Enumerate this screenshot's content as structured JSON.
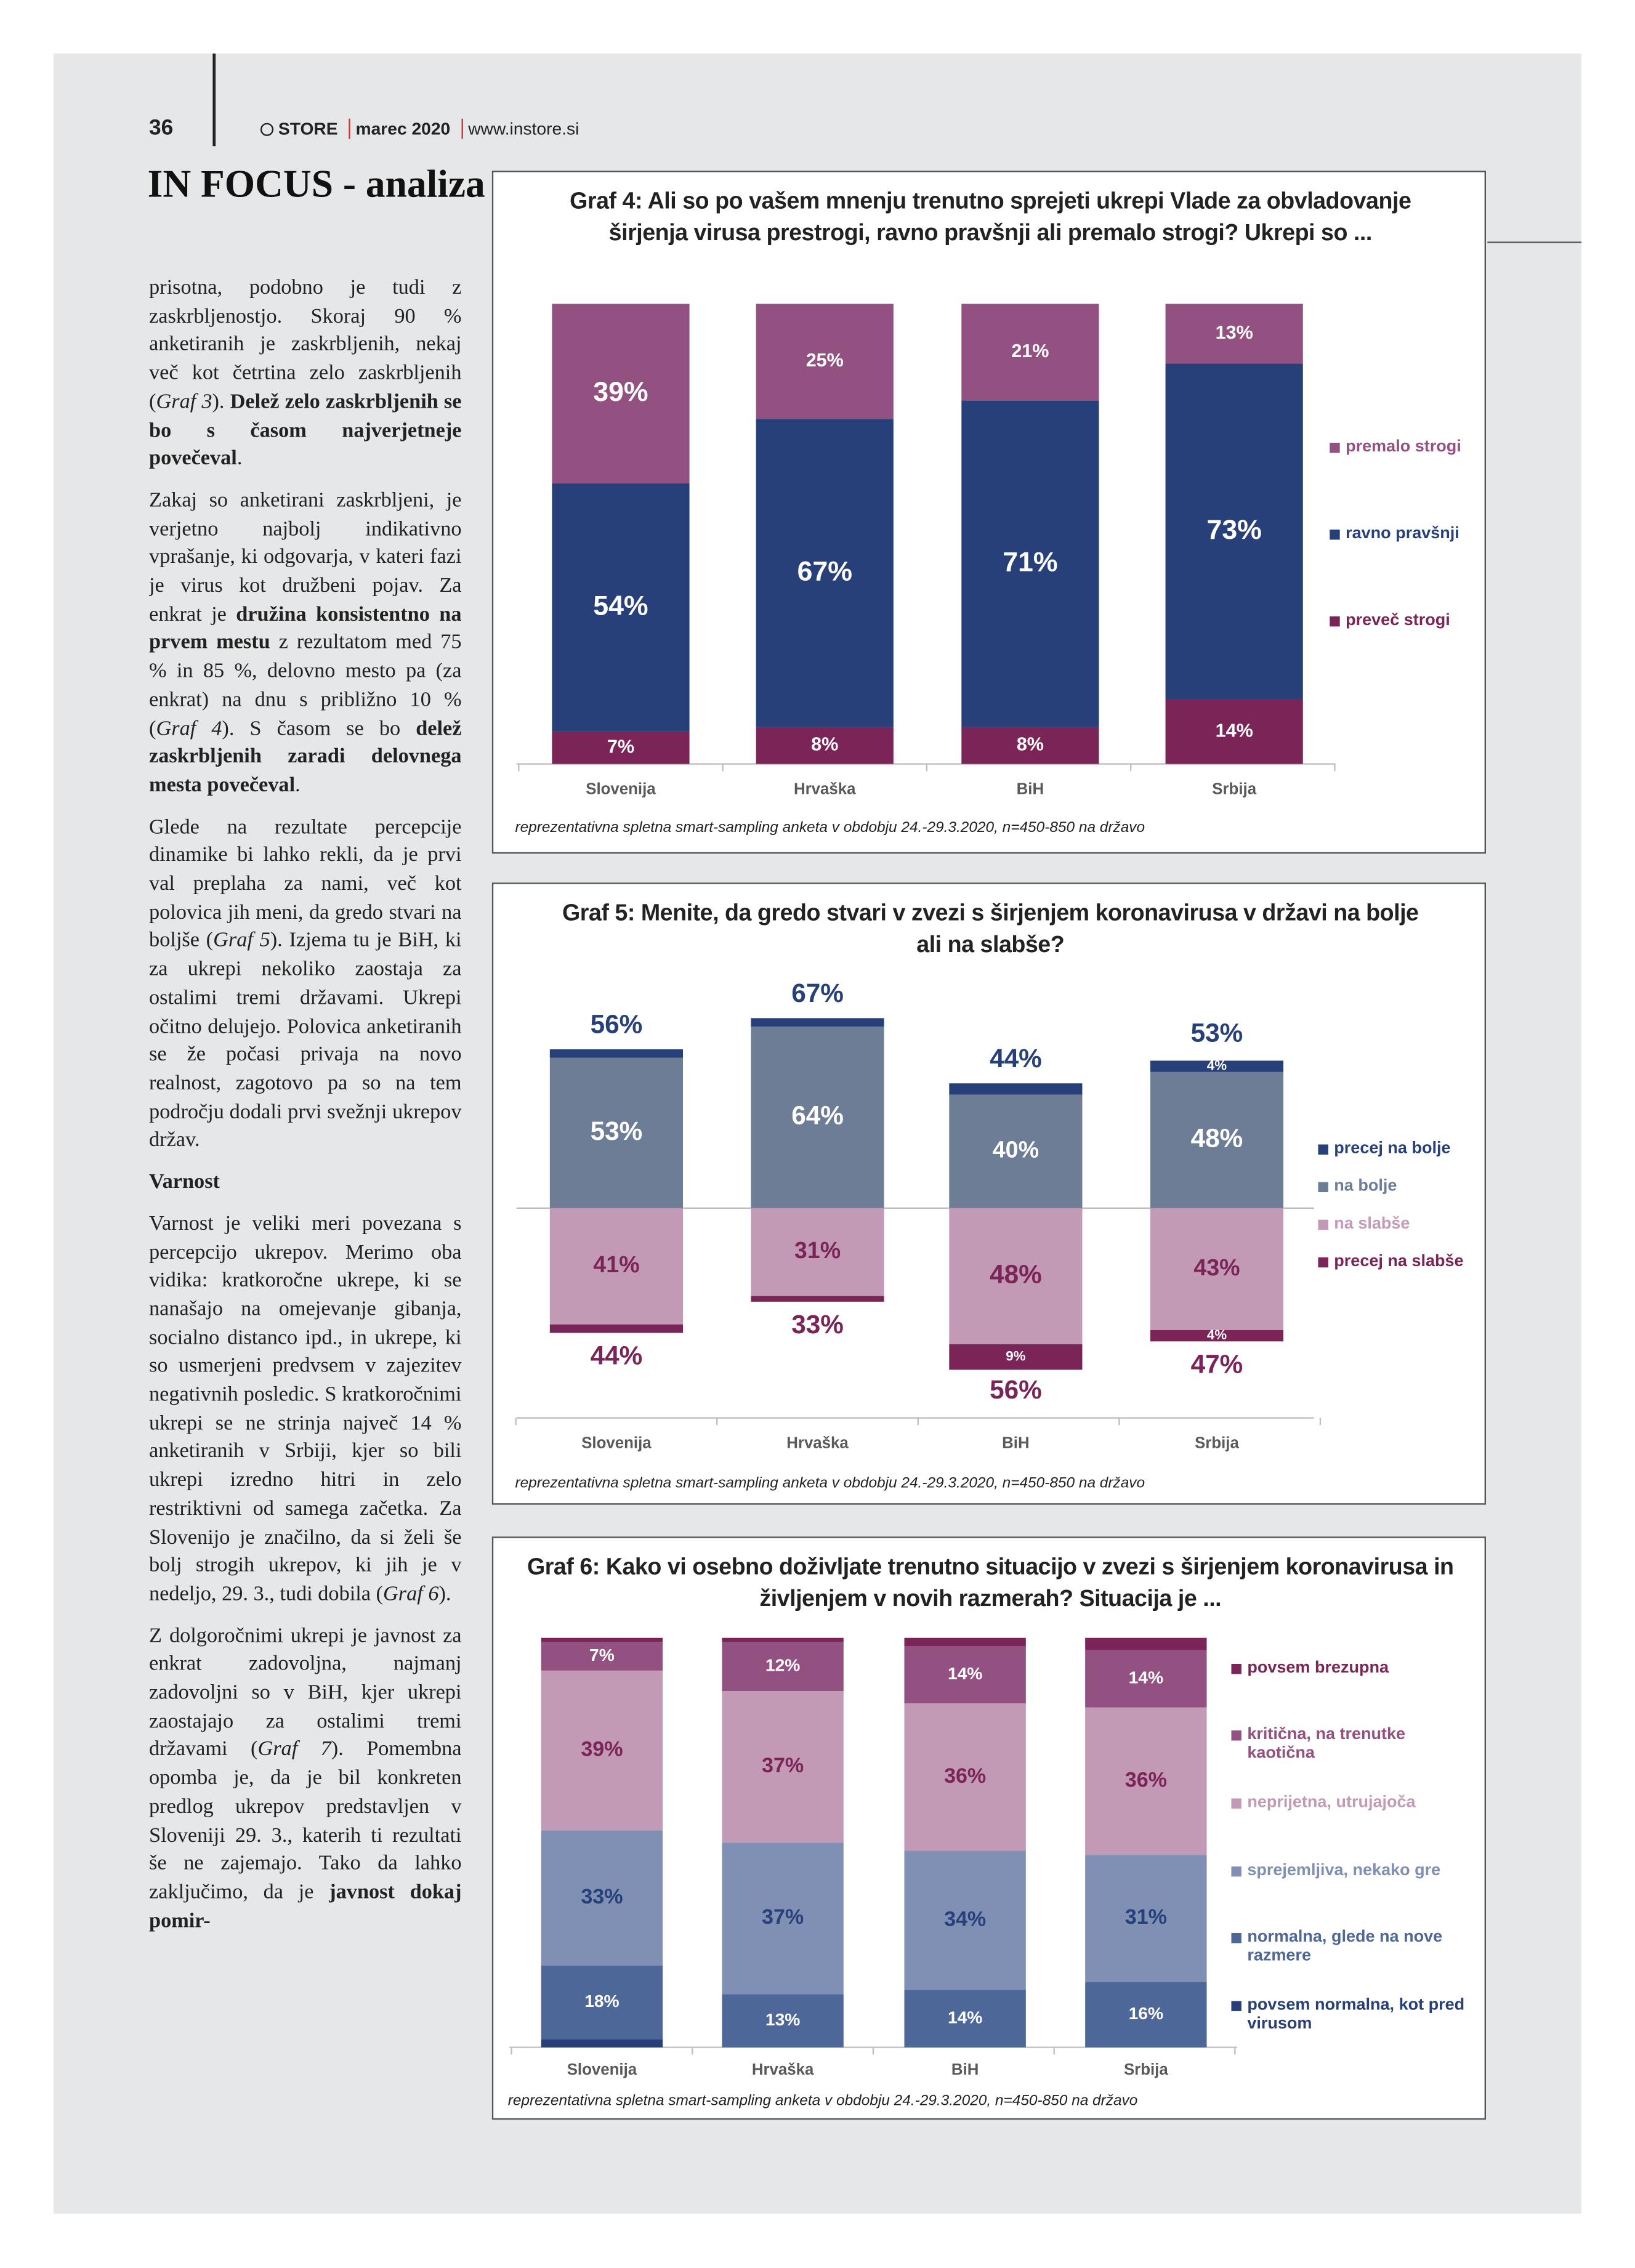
{
  "header": {
    "page_number": "36",
    "magazine": "STORE",
    "issue": "marec 2020",
    "website": "www.instore.si",
    "section": "IN FOCUS - analiza"
  },
  "article": {
    "paragraphs": [
      {
        "kind": "text",
        "runs": [
          {
            "text": "prisotna, podobno je tudi z zaskrbljenostjo. Skoraj 90 % anketiranih je zaskrbljenih, nekaj več kot četrtina zelo zaskrbljenih (",
            "style": "normal"
          },
          {
            "text": "Graf 3",
            "style": "italic"
          },
          {
            "text": "). ",
            "style": "normal"
          },
          {
            "text": "Delež zelo zaskrbljenih se bo s časom najverjetneje povečeval",
            "style": "bold"
          },
          {
            "text": ".",
            "style": "normal"
          }
        ]
      },
      {
        "kind": "text",
        "runs": [
          {
            "text": "Zakaj so anketirani zaskrbljeni, je verjetno najbolj indikativno vprašanje, ki odgovarja, v kateri fazi je virus kot družbeni pojav. Za enkrat je ",
            "style": "normal"
          },
          {
            "text": "družina konsistentno na prvem mestu",
            "style": "bold"
          },
          {
            "text": " z rezultatom med 75 % in 85 %, delovno mesto pa (za enkrat) na dnu s približno 10 % (",
            "style": "normal"
          },
          {
            "text": "Graf 4",
            "style": "italic"
          },
          {
            "text": "). S časom se bo ",
            "style": "normal"
          },
          {
            "text": "delež zaskrbljenih zaradi delovnega mesta povečeval",
            "style": "bold"
          },
          {
            "text": ".",
            "style": "normal"
          }
        ]
      },
      {
        "kind": "text",
        "runs": [
          {
            "text": "Glede na rezultate percepcije dinamike bi lahko rekli, da je prvi val preplaha za nami, več kot polovica jih meni, da gredo stvari na boljše (",
            "style": "normal"
          },
          {
            "text": "Graf 5",
            "style": "italic"
          },
          {
            "text": "). Izjema tu je BiH, ki za ukrepi nekoliko zaostaja za ostalimi tremi državami. Ukrepi očitno delujejo. Polovica anketiranih se že počasi privaja na novo realnost, zagotovo pa so na tem področju dodali prvi svežnji ukrepov držav.",
            "style": "normal"
          }
        ]
      },
      {
        "kind": "heading",
        "runs": [
          {
            "text": "Varnost",
            "style": "bold"
          }
        ]
      },
      {
        "kind": "text",
        "runs": [
          {
            "text": "Varnost je veliki meri povezana s percepcijo ukrepov. Merimo oba vidika: kratkoročne ukrepe, ki se nanašajo na omejevanje gibanja, socialno distanco ipd., in ukrepe, ki so usmerjeni predvsem v zajezitev negativnih posledic. S kratkoročnimi ukrepi se ne strinja največ 14 % anketiranih v Srbiji, kjer so bili ukrepi izredno hitri in zelo restriktivni od samega začetka. Za Slovenijo je značilno, da si želi še bolj strogih ukrepov, ki jih je v nedeljo, 29. 3., tudi dobila (",
            "style": "normal"
          },
          {
            "text": "Graf 6",
            "style": "italic"
          },
          {
            "text": ").",
            "style": "normal"
          }
        ]
      },
      {
        "kind": "text",
        "runs": [
          {
            "text": "Z dolgoročnimi ukrepi je javnost za enkrat zadovoljna, najmanj zadovoljni so v BiH, kjer ukrepi zaostajajo za ostalimi tremi državami (",
            "style": "normal"
          },
          {
            "text": "Graf 7",
            "style": "italic"
          },
          {
            "text": "). Pomembna opomba je, da je bil konkreten predlog ukrepov predstavljen v Sloveniji 29. 3., katerih ti rezultati še ne zajemajo. Tako da lahko zaključimo, da je ",
            "style": "normal"
          },
          {
            "text": "javnost dokaj pomir-",
            "style": "bold"
          }
        ]
      }
    ]
  },
  "charts": [
    {
      "type": "stacked_bar",
      "title": "Graf 4: Ali so po vašem mnenju trenutno sprejeti ukrepi Vlade za obvladovanje širjenja virusa prestrogi, ravno pravšnji ali premalo strogi? Ukrepi so ...",
      "categories": [
        "Slovenija",
        "Hrvaška",
        "BiH",
        "Srbija"
      ],
      "series": [
        {
          "name": "preveč strogi",
          "color": "#7b2457",
          "label_color": "#ffffff",
          "values": [
            7,
            8,
            8,
            14
          ],
          "value_labels": [
            "7%",
            "8%",
            "8%",
            "14%"
          ]
        },
        {
          "name": "ravno pravšnji",
          "color": "#27407a",
          "label_color": "#ffffff",
          "values": [
            54,
            67,
            71,
            73
          ],
          "value_labels": [
            "54%",
            "67%",
            "71%",
            "73%"
          ]
        },
        {
          "name": "premalo strogi",
          "color": "#935181",
          "label_color": "#ffffff",
          "values": [
            39,
            25,
            21,
            13
          ],
          "value_labels": [
            "39%",
            "25%",
            "21%",
            "13%"
          ]
        }
      ],
      "legend": "right",
      "note": "reprezentativna spletna smart-sampling anketa v obdobju 24.-29.3.2020, n=450-850 na državo"
    },
    {
      "type": "diverging_bar",
      "title": "Graf 5: Menite, da gredo stvari v zvezi s širjenjem koronavirusa v državi na bolje ali na slabše?",
      "categories": [
        "Slovenija",
        "Hrvaška",
        "BiH",
        "Srbija"
      ],
      "series": [
        {
          "name": "na bolje",
          "side": "up",
          "color": "#6e7d96",
          "label_color": "#ffffff",
          "values": [
            53,
            64,
            40,
            48
          ],
          "value_labels": [
            "53%",
            "64%",
            "40%",
            "48%"
          ]
        },
        {
          "name": "precej na bolje",
          "side": "up",
          "color": "#27407a",
          "label_color": "#ffffff",
          "values": [
            3,
            3,
            4,
            4
          ],
          "value_labels": [
            null,
            null,
            null,
            "4%"
          ]
        },
        {
          "name": "na slabše",
          "side": "down",
          "color": "#c39ab5",
          "label_color": "#7b2457",
          "values": [
            41,
            31,
            48,
            43
          ],
          "value_labels": [
            "41%",
            "31%",
            "48%",
            "43%"
          ]
        },
        {
          "name": "precej na slabše",
          "side": "down",
          "color": "#7b2457",
          "label_color": "#ffffff",
          "values": [
            3,
            2,
            9,
            4
          ],
          "value_labels": [
            null,
            null,
            "9%",
            "4%"
          ]
        }
      ],
      "totals": {
        "up": {
          "color": "#27407a",
          "values": [
            56,
            67,
            44,
            53
          ],
          "value_labels": [
            "56%",
            "67%",
            "44%",
            "53%"
          ]
        },
        "down": {
          "color": "#7b2457",
          "values": [
            44,
            33,
            56,
            47
          ],
          "value_labels": [
            "44%",
            "33%",
            "56%",
            "47%"
          ]
        }
      },
      "legend": "right",
      "note": "reprezentativna spletna smart-sampling anketa v obdobju 24.-29.3.2020, n=450-850 na državo"
    },
    {
      "type": "stacked_bar",
      "title": "Graf 6: Kako vi osebno doživljate trenutno situacijo v zvezi s širjenjem koronavirusa in življenjem v novih razmerah? Situacija je ...",
      "categories": [
        "Slovenija",
        "Hrvaška",
        "BiH",
        "Srbija"
      ],
      "series": [
        {
          "name": "povsem normalna, kot pred virusom",
          "color": "#27407a",
          "label_color": "#ffffff",
          "values": [
            2,
            0,
            0,
            0
          ]
        },
        {
          "name": "normalna, glede na nove razmere",
          "color": "#4e6799",
          "label_color": "#ffffff",
          "values": [
            18,
            13,
            14,
            16
          ],
          "value_labels": [
            "18%",
            "13%",
            "14%",
            "16%"
          ]
        },
        {
          "name": "sprejemljiva, nekako gre",
          "color": "#8090b4",
          "label_color": "#27407a",
          "values": [
            33,
            37,
            34,
            31
          ],
          "value_labels": [
            "33%",
            "37%",
            "34%",
            "31%"
          ]
        },
        {
          "name": "neprijetna, utrujajoča",
          "color": "#c39ab5",
          "label_color": "#7b2457",
          "values": [
            39,
            37,
            36,
            36
          ],
          "value_labels": [
            "39%",
            "37%",
            "36%",
            "36%"
          ]
        },
        {
          "name": "kritična, na trenutke kaotična",
          "color": "#935181",
          "label_color": "#ffffff",
          "values": [
            7,
            12,
            14,
            14
          ],
          "value_labels": [
            "7%",
            "12%",
            "14%",
            "14%"
          ]
        },
        {
          "name": "povsem brezupna",
          "color": "#7b2457",
          "label_color": "#ffffff",
          "values": [
            1,
            1,
            2,
            3
          ]
        }
      ],
      "legend": "right",
      "note": "reprezentativna spletna smart-sampling anketa v obdobju 24.-29.3.2020, n=450-850 na državo"
    }
  ]
}
